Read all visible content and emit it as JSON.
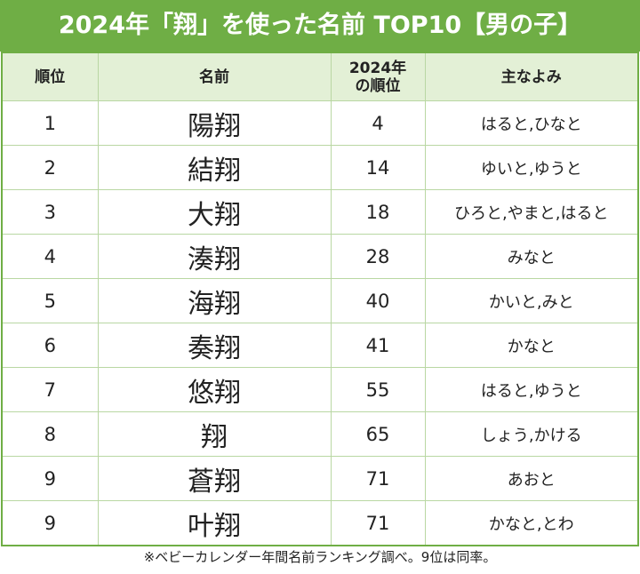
{
  "header": {
    "title": "2024年「翔」を使った名前 TOP10【男の子】"
  },
  "table": {
    "columns": [
      "順位",
      "名前",
      [
        "2024年",
        "の順位"
      ],
      "主なよみ"
    ],
    "rows": [
      [
        "1",
        "陽翔",
        "4",
        "はると,ひなと"
      ],
      [
        "2",
        "結翔",
        "14",
        "ゆいと,ゆうと"
      ],
      [
        "3",
        "大翔",
        "18",
        "ひろと,やまと,はると"
      ],
      [
        "4",
        "湊翔",
        "28",
        "みなと"
      ],
      [
        "5",
        "海翔",
        "40",
        "かいと,みと"
      ],
      [
        "6",
        "奏翔",
        "41",
        "かなと"
      ],
      [
        "7",
        "悠翔",
        "55",
        "はると,ゆうと"
      ],
      [
        "8",
        "翔",
        "65",
        "しょう,かける"
      ],
      [
        "9",
        "蒼翔",
        "71",
        "あおと"
      ],
      [
        "9",
        "叶翔",
        "71",
        "かなと,とわ"
      ]
    ]
  },
  "footnote": "※ベビーカレンダー年間名前ランキング調べ。9位は同率。"
}
